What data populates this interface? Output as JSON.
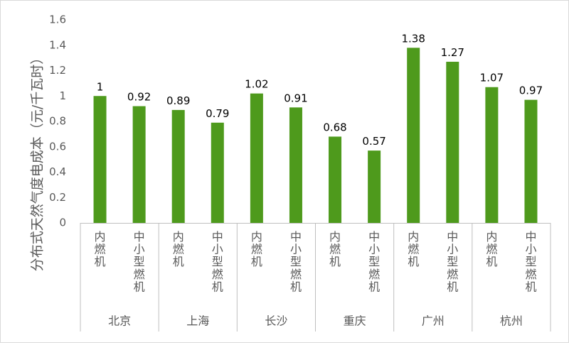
{
  "chart_data": {
    "type": "bar",
    "ylabel": "分布式天然气度电成本（元/千瓦时）",
    "ylim": [
      0,
      1.6
    ],
    "yticks": [
      0,
      0.2,
      0.4,
      0.6,
      0.8,
      1,
      1.2,
      1.4,
      1.6
    ],
    "ytick_labels": [
      "0",
      "0.2",
      "0.4",
      "0.6",
      "0.8",
      "1",
      "1.2",
      "1.4",
      "1.6"
    ],
    "groups": [
      {
        "name": "北京",
        "categories": [
          "内燃机",
          "中小型燃机"
        ],
        "values": [
          1,
          0.92
        ],
        "labels": [
          "1",
          "0.92"
        ]
      },
      {
        "name": "上海",
        "categories": [
          "内燃机",
          "中小型燃机"
        ],
        "values": [
          0.89,
          0.79
        ],
        "labels": [
          "0.89",
          "0.79"
        ]
      },
      {
        "name": "长沙",
        "categories": [
          "内燃机",
          "中小型燃机"
        ],
        "values": [
          1.02,
          0.91
        ],
        "labels": [
          "1.02",
          "0.91"
        ]
      },
      {
        "name": "重庆",
        "categories": [
          "内燃机",
          "中小型燃机"
        ],
        "values": [
          0.68,
          0.57
        ],
        "labels": [
          "0.68",
          "0.57"
        ]
      },
      {
        "name": "广州",
        "categories": [
          "内燃机",
          "中小型燃机"
        ],
        "values": [
          1.38,
          1.27
        ],
        "labels": [
          "1.38",
          "1.27"
        ]
      },
      {
        "name": "杭州",
        "categories": [
          "内燃机",
          "中小型燃机"
        ],
        "values": [
          1.07,
          0.97
        ],
        "labels": [
          "1.07",
          "0.97"
        ]
      }
    ],
    "bar_color": "#4e9a1c",
    "grid": false,
    "legend": "none"
  }
}
